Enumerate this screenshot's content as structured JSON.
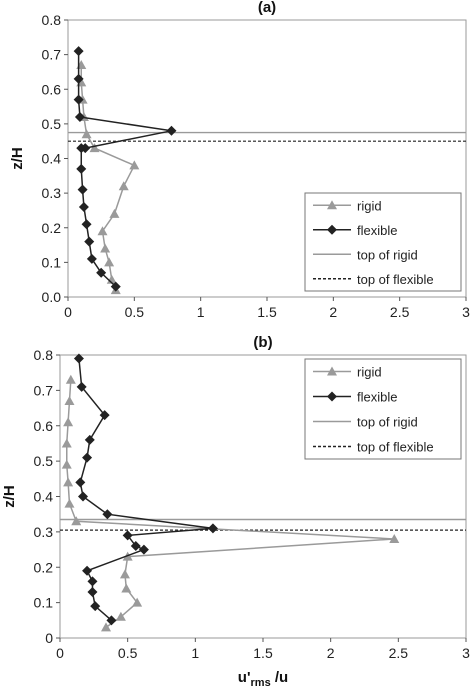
{
  "chart_data": [
    {
      "type": "line",
      "title": "(a)",
      "xlabel": "",
      "ylabel": "z/H",
      "xlim": [
        0,
        3
      ],
      "ylim": [
        0,
        0.8
      ],
      "xticks": [
        "0",
        "0.5",
        "1",
        "1.5",
        "2",
        "2.5",
        "3"
      ],
      "yticks": [
        "0.0",
        "0.1",
        "0.2",
        "0.3",
        "0.4",
        "0.5",
        "0.6",
        "0.7",
        "0.8"
      ],
      "grid": false,
      "legend_position": "bottom-right",
      "series": [
        {
          "name": "rigid",
          "color": "#9a9a9a",
          "marker": "triangle",
          "x": [
            0.36,
            0.33,
            0.31,
            0.28,
            0.26,
            0.35,
            0.42,
            0.5,
            0.2,
            0.14,
            0.12,
            0.11,
            0.1,
            0.1
          ],
          "y": [
            0.02,
            0.05,
            0.1,
            0.14,
            0.19,
            0.24,
            0.32,
            0.38,
            0.43,
            0.47,
            0.52,
            0.57,
            0.62,
            0.67
          ]
        },
        {
          "name": "flexible",
          "color": "#222222",
          "marker": "diamond",
          "x": [
            0.36,
            0.25,
            0.18,
            0.16,
            0.14,
            0.12,
            0.11,
            0.1,
            0.1,
            0.13,
            0.78,
            0.09,
            0.08,
            0.08,
            0.08
          ],
          "y": [
            0.03,
            0.07,
            0.11,
            0.16,
            0.21,
            0.26,
            0.31,
            0.37,
            0.43,
            0.43,
            0.48,
            0.52,
            0.57,
            0.63,
            0.71
          ]
        },
        {
          "name": "top of rigid",
          "color": "#9a9a9a",
          "style": "solid",
          "hline": 0.475
        },
        {
          "name": "top of flexible",
          "color": "#222222",
          "style": "dotted",
          "hline": 0.45
        }
      ]
    },
    {
      "type": "line",
      "title": "(b)",
      "xlabel": "u'rms /u",
      "ylabel": "z/H",
      "xlim": [
        0,
        3
      ],
      "ylim": [
        0,
        0.8
      ],
      "xticks": [
        "0",
        "0.5",
        "1",
        "1.5",
        "2",
        "2.5",
        "3"
      ],
      "yticks": [
        "0",
        "0.1",
        "0.2",
        "0.3",
        "0.4",
        "0.5",
        "0.6",
        "0.7",
        "0.8"
      ],
      "grid": false,
      "legend_position": "top-right",
      "series": [
        {
          "name": "rigid",
          "color": "#9a9a9a",
          "marker": "triangle",
          "x": [
            0.34,
            0.45,
            0.57,
            0.49,
            0.48,
            0.5,
            2.47,
            0.12,
            0.07,
            0.06,
            0.05,
            0.05,
            0.06,
            0.07,
            0.08
          ],
          "y": [
            0.03,
            0.06,
            0.1,
            0.14,
            0.18,
            0.23,
            0.28,
            0.33,
            0.38,
            0.44,
            0.49,
            0.55,
            0.61,
            0.67,
            0.73
          ]
        },
        {
          "name": "flexible",
          "color": "#222222",
          "marker": "diamond",
          "x": [
            0.38,
            0.26,
            0.24,
            0.24,
            0.2,
            0.62,
            0.56,
            0.5,
            1.13,
            0.35,
            0.17,
            0.15,
            0.2,
            0.22,
            0.33,
            0.16,
            0.14
          ],
          "y": [
            0.05,
            0.09,
            0.13,
            0.16,
            0.19,
            0.25,
            0.26,
            0.29,
            0.31,
            0.35,
            0.4,
            0.44,
            0.51,
            0.56,
            0.63,
            0.71,
            0.79
          ]
        },
        {
          "name": "top of rigid",
          "color": "#9a9a9a",
          "style": "solid",
          "hline": 0.335
        },
        {
          "name": "top of flexible",
          "color": "#222222",
          "style": "dotted",
          "hline": 0.305
        }
      ]
    }
  ]
}
